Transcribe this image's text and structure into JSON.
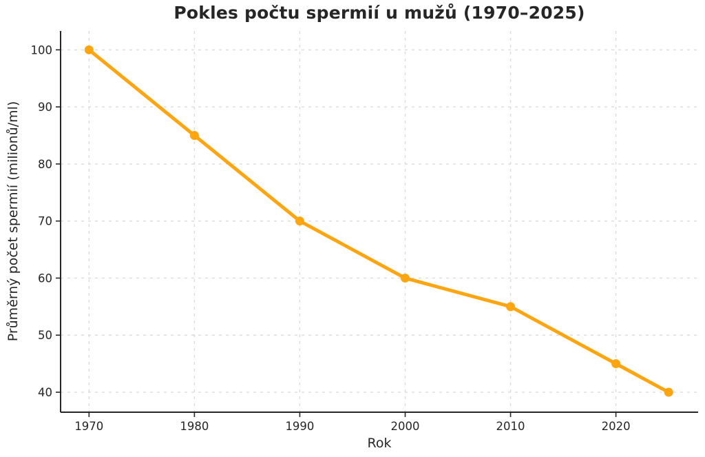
{
  "figure": {
    "background": "#ffffff"
  },
  "chart_data": {
    "type": "line",
    "title": "Pokles počtu spermií u mužů (1970–2025)",
    "xlabel": "Rok",
    "ylabel": "Průměrný počet spermií (milionů/ml)",
    "x": [
      1970,
      1980,
      1990,
      2000,
      2010,
      2020,
      2025
    ],
    "series": [
      {
        "name": "Průměrný počet spermií (milionů/ml)",
        "values": [
          100,
          85,
          70,
          60,
          55,
          45,
          40
        ],
        "color": "#FFA510",
        "marker": "circle"
      }
    ],
    "xticks": [
      1970,
      1980,
      1990,
      2000,
      2010,
      2020
    ],
    "yticks": [
      40,
      50,
      60,
      70,
      80,
      90,
      100
    ],
    "xlim": [
      1967.3,
      2027.8
    ],
    "ylim": [
      36.5,
      103.3
    ],
    "grid": true,
    "grid_style": "dashed",
    "legend": "none",
    "colors": {
      "line": "#FFA510",
      "grid": "#DBDBDB",
      "axis": "#262626",
      "tick_text": "#262626"
    }
  }
}
